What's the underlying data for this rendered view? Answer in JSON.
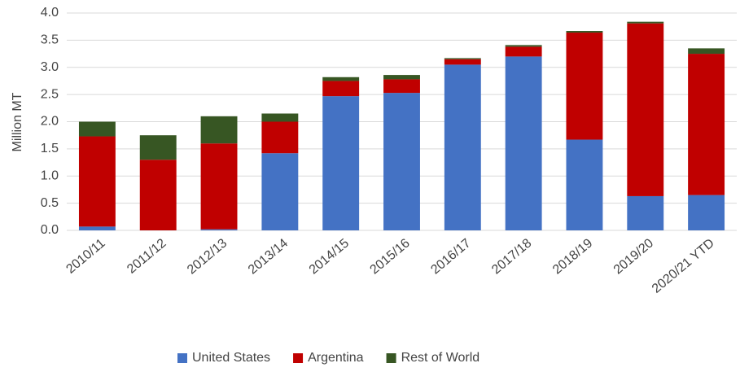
{
  "chart_data": {
    "type": "stacked_bar",
    "y_label": "Million MT",
    "categories": [
      "2010/11",
      "2011/12",
      "2012/13",
      "2013/14",
      "2014/15",
      "2015/16",
      "2016/17",
      "2017/18",
      "2018/19",
      "2019/20",
      "2020/21 YTD"
    ],
    "series": [
      {
        "name": "United States",
        "color": "#4472c4",
        "values": [
          0.07,
          0,
          0.02,
          1.42,
          2.47,
          2.53,
          3.05,
          3.2,
          1.67,
          0.63,
          0.65
        ]
      },
      {
        "name": "Argentina",
        "color": "#c00000",
        "values": [
          1.66,
          1.3,
          1.58,
          0.58,
          0.28,
          0.25,
          0.1,
          0.18,
          1.97,
          3.18,
          2.6
        ]
      },
      {
        "name": "Rest of World",
        "color": "#375623",
        "values": [
          0.27,
          0.45,
          0.5,
          0.15,
          0.07,
          0.08,
          0.02,
          0.03,
          0.03,
          0.03,
          0.1
        ]
      }
    ],
    "ylim": [
      0,
      4
    ],
    "yticks": [
      {
        "value": 0,
        "label": "0.0"
      },
      {
        "value": 0.5,
        "label": "0.5"
      },
      {
        "value": 1,
        "label": "1.0"
      },
      {
        "value": 1.5,
        "label": "1.5"
      },
      {
        "value": 2,
        "label": "2.0"
      },
      {
        "value": 2.5,
        "label": "2.5"
      },
      {
        "value": 3,
        "label": "3.0"
      },
      {
        "value": 3.5,
        "label": "3.5"
      },
      {
        "value": 4,
        "label": "4.0"
      }
    ],
    "grid": true,
    "legend": "bottom"
  }
}
